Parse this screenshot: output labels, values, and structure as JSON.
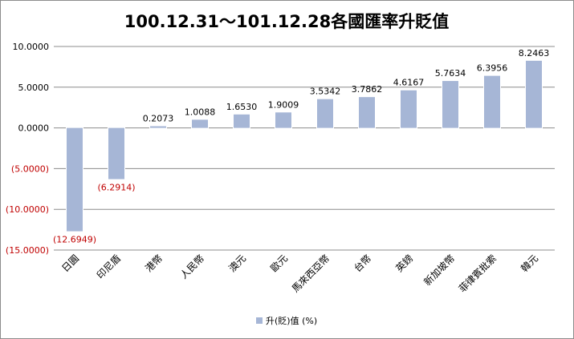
{
  "chart_data": {
    "type": "bar",
    "title": "100.12.31～101.12.28各國匯率升貶值",
    "categories": [
      "日圓",
      "印尼盾",
      "港幣",
      "人民幣",
      "澳元",
      "歐元",
      "馬來西亞幣",
      "台幣",
      "英鎊",
      "新加坡幣",
      "菲律賓批索",
      "韓元"
    ],
    "series": [
      {
        "name": "升(貶)值 (%)",
        "values": [
          -12.6949,
          -6.2914,
          0.2073,
          1.0088,
          1.653,
          1.9009,
          3.5342,
          3.7862,
          4.6167,
          5.7634,
          6.3956,
          8.2463
        ]
      }
    ],
    "data_labels": [
      "(12.6949)",
      "(6.2914)",
      "0.2073",
      "1.0088",
      "1.6530",
      "1.9009",
      "3.5342",
      "3.7862",
      "4.6167",
      "5.7634",
      "6.3956",
      "8.2463"
    ],
    "y_ticks": [
      10,
      5,
      0,
      -5,
      -10,
      -15
    ],
    "y_tick_labels": [
      "10.0000",
      "5.0000",
      "0.0000",
      "(5.0000)",
      "(10.0000)",
      "(15.0000)"
    ],
    "ylim": [
      -15,
      10
    ],
    "xlabel": "",
    "ylabel": "",
    "grid": true,
    "legend_position": "bottom",
    "colors": {
      "bar_fill": "#a6b6d6",
      "bar_highlight": "#ffffff",
      "grid": "#8c8c8c",
      "negative_text": "#c00000"
    }
  }
}
